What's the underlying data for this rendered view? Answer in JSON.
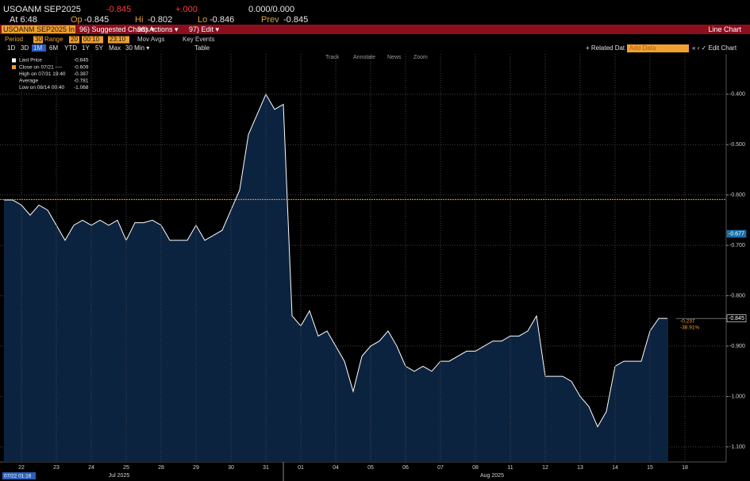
{
  "header": {
    "ticker": "USOANM SEP2025",
    "last": "-0.845",
    "change": "+.000",
    "bidask": "0.000/0.000",
    "time": "At 6:48",
    "open_label": "Op",
    "open": "-0.845",
    "high_label": "Hi",
    "high": "-0.802",
    "low_label": "Lo",
    "low": "-0.846",
    "prev_label": "Prev",
    "prev": "-0.845"
  },
  "menu": {
    "security": "USOANM SEP2025 In",
    "items": [
      "96) Suggested Charts ▾",
      "96) Actions ▾",
      "97) Edit ▾"
    ],
    "chart_type": "Line Chart"
  },
  "toolbar": {
    "period_label": "Period",
    "period": "30",
    "range_label": "Range",
    "range": "20",
    "start": "00:10",
    "end": "23:10",
    "mov_avgs": "Mov Avgs",
    "key_events": "Key Events",
    "ranges": [
      "1D",
      "3D",
      "1M",
      "6M",
      "YTD",
      "1Y",
      "5Y",
      "Max"
    ],
    "interval": "30 Min ▾",
    "table": "Table",
    "related": "+ Related Dat",
    "add_data": "Add Data",
    "edit_chart": "« ‹ ✓ Edit Chart"
  },
  "chart_tools": [
    "Track",
    "Annotate",
    "News",
    "Zoom"
  ],
  "legend": [
    {
      "label": "Last Price",
      "value": "-0.845"
    },
    {
      "label": "Close on 07/21 ----",
      "value": "-0.609"
    },
    {
      "label": "High on 07/31 19:40",
      "value": "-0.387"
    },
    {
      "label": "Average",
      "value": "-0.781"
    },
    {
      "label": "Low on 08/14 00:40",
      "value": "-1.068"
    }
  ],
  "chart_data": {
    "type": "line",
    "categories": [
      null,
      null,
      "22",
      null,
      null,
      null,
      "23",
      null,
      null,
      null,
      "24",
      null,
      null,
      null,
      "25",
      null,
      null,
      null,
      "28",
      null,
      null,
      null,
      "29",
      null,
      null,
      null,
      "30",
      null,
      null,
      null,
      "31",
      null,
      null,
      null,
      "01",
      null,
      null,
      null,
      "04",
      null,
      null,
      null,
      "05",
      null,
      null,
      null,
      "06",
      null,
      null,
      null,
      "07",
      null,
      null,
      null,
      "08",
      null,
      null,
      null,
      "11",
      null,
      null,
      null,
      "12",
      null,
      null,
      null,
      "13",
      null,
      null,
      null,
      "14",
      null,
      null,
      null,
      "15",
      null,
      null,
      null,
      "18",
      null
    ],
    "series": [
      {
        "name": "Last Price",
        "color": "#ffffff",
        "values": [
          -0.61,
          -0.61,
          -0.62,
          -0.64,
          -0.62,
          -0.63,
          -0.66,
          -0.69,
          -0.66,
          -0.65,
          -0.66,
          -0.65,
          -0.66,
          -0.65,
          -0.69,
          -0.655,
          -0.655,
          -0.65,
          -0.66,
          -0.69,
          -0.69,
          -0.69,
          -0.66,
          -0.69,
          -0.68,
          -0.67,
          -0.63,
          -0.59,
          -0.48,
          -0.44,
          -0.4,
          -0.43,
          -0.42,
          -0.84,
          -0.86,
          -0.83,
          -0.88,
          -0.87,
          -0.9,
          -0.93,
          -0.99,
          -0.92,
          -0.9,
          -0.89,
          -0.87,
          -0.9,
          -0.94,
          -0.95,
          -0.94,
          -0.95,
          -0.93,
          -0.93,
          -0.92,
          -0.91,
          -0.91,
          -0.9,
          -0.89,
          -0.89,
          -0.88,
          -0.88,
          -0.87,
          -0.84,
          -0.96,
          -0.96,
          -0.96,
          -0.97,
          -1.0,
          -1.02,
          -1.06,
          -1.03,
          -0.94,
          -0.93,
          -0.93,
          -0.93,
          -0.87,
          -0.845,
          -0.845,
          null,
          null,
          null
        ]
      }
    ],
    "ylim": [
      -1.13,
      -0.32
    ],
    "yticks": [
      {
        "value": -0.4,
        "label": "-0.400"
      },
      {
        "value": -0.5,
        "label": "-0.500"
      },
      {
        "value": -0.6,
        "label": "-0.600"
      },
      {
        "value": -0.7,
        "label": "-0.700"
      },
      {
        "value": -0.8,
        "label": "-0.800"
      },
      {
        "value": -0.9,
        "label": "-0.900"
      },
      {
        "value": -1.0,
        "label": "-1.000"
      },
      {
        "value": -1.1,
        "label": "-1.100"
      }
    ],
    "grid": true,
    "reference_line": {
      "value": -0.609,
      "color": "#f0a020"
    },
    "axis_markers": [
      {
        "value": -0.677,
        "color": "#1b6fa8"
      },
      {
        "value": -0.845,
        "color": "#ffffff"
      }
    ],
    "change_annotation": [
      "-0.237",
      "-38.91%"
    ],
    "month_labels": [
      "Jul 2025",
      "Aug 2025"
    ],
    "cursor_label": "07/22 01:16"
  }
}
